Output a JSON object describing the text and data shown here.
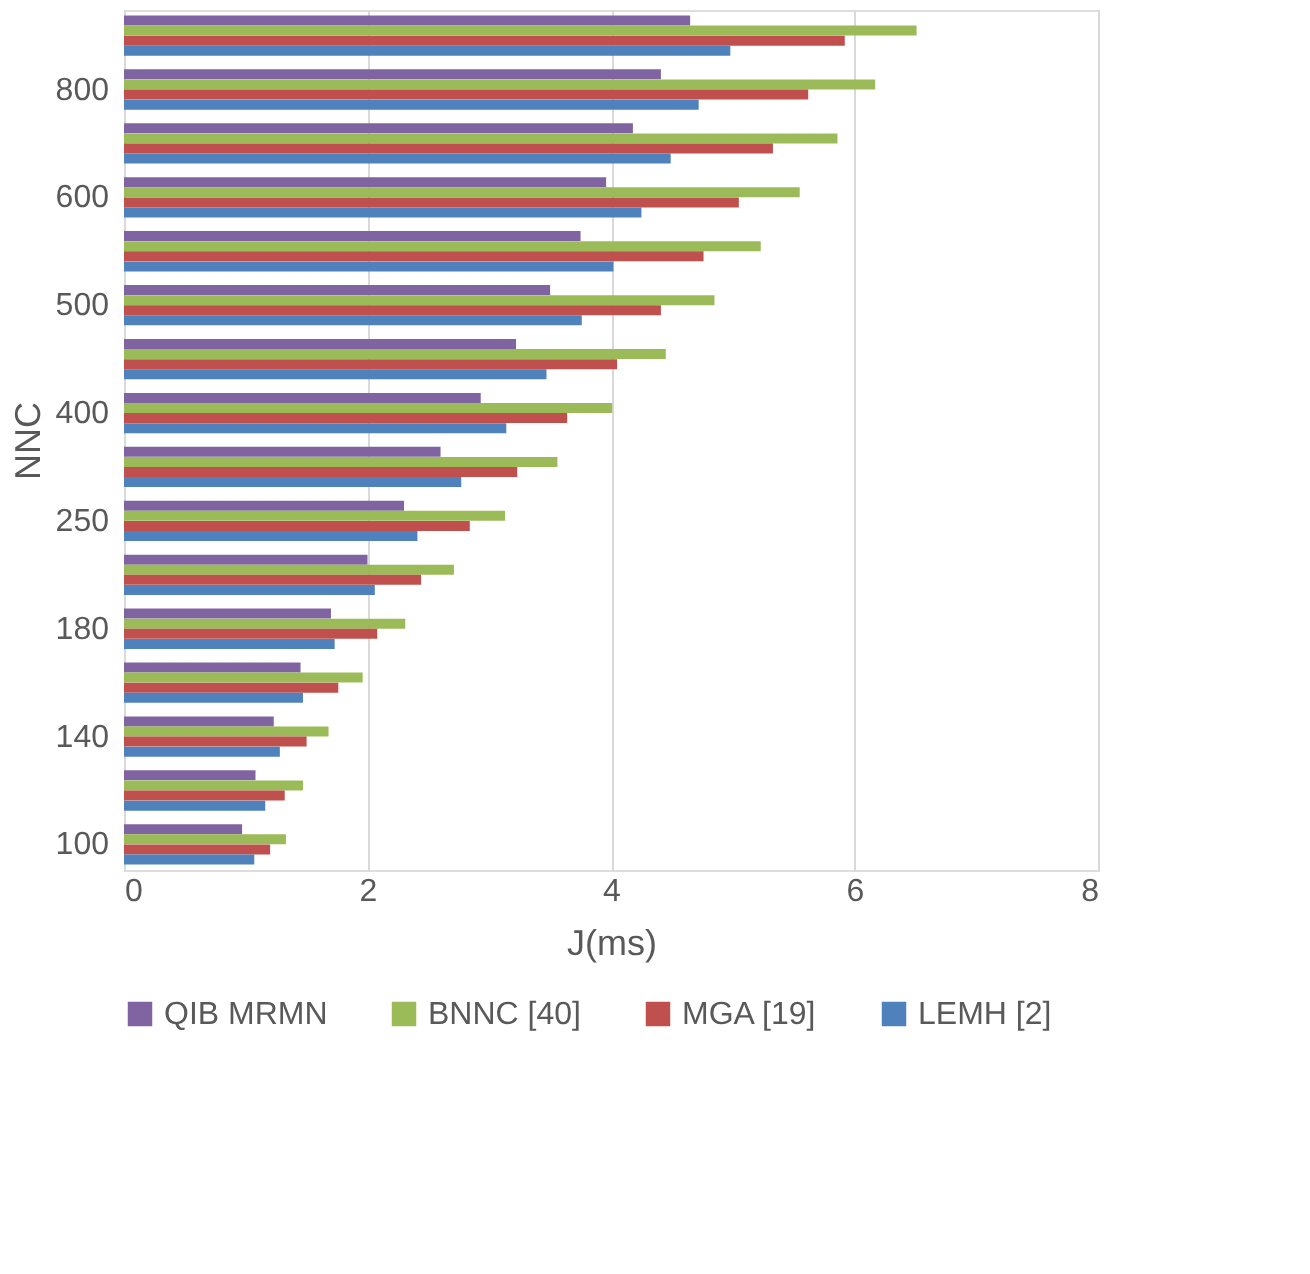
{
  "chart_data": {
    "type": "bar",
    "orientation": "horizontal",
    "xlabel": "J(ms)",
    "ylabel": "NNC",
    "categories": [
      null,
      "800",
      null,
      "600",
      null,
      "500",
      null,
      "400",
      null,
      "250",
      null,
      "180",
      null,
      "140",
      null,
      "100"
    ],
    "series": [
      {
        "name": "QIB MRMN",
        "color": "#8064a2",
        "values": [
          4.65,
          4.41,
          4.18,
          3.96,
          3.75,
          3.5,
          3.22,
          2.93,
          2.6,
          2.3,
          2.0,
          1.7,
          1.45,
          1.23,
          1.08,
          0.97
        ]
      },
      {
        "name": "BNNC [40]",
        "color": "#9bbb59",
        "values": [
          6.51,
          6.17,
          5.86,
          5.55,
          5.23,
          4.85,
          4.45,
          4.01,
          3.56,
          3.13,
          2.71,
          2.31,
          1.96,
          1.68,
          1.47,
          1.33
        ]
      },
      {
        "name": "MGA [19]",
        "color": "#c0504d",
        "values": [
          5.92,
          5.62,
          5.33,
          5.05,
          4.76,
          4.41,
          4.05,
          3.64,
          3.23,
          2.84,
          2.44,
          2.08,
          1.76,
          1.5,
          1.32,
          1.2
        ]
      },
      {
        "name": "LEMH [2]",
        "color": "#4f81bd",
        "values": [
          4.98,
          4.72,
          4.49,
          4.25,
          4.02,
          3.76,
          3.47,
          3.14,
          2.77,
          2.41,
          2.06,
          1.73,
          1.47,
          1.28,
          1.16,
          1.07
        ]
      }
    ],
    "xlim": [
      0,
      8
    ],
    "xticks": [
      0,
      2,
      4,
      6,
      8
    ],
    "grid": "x",
    "legend": "bottom"
  }
}
